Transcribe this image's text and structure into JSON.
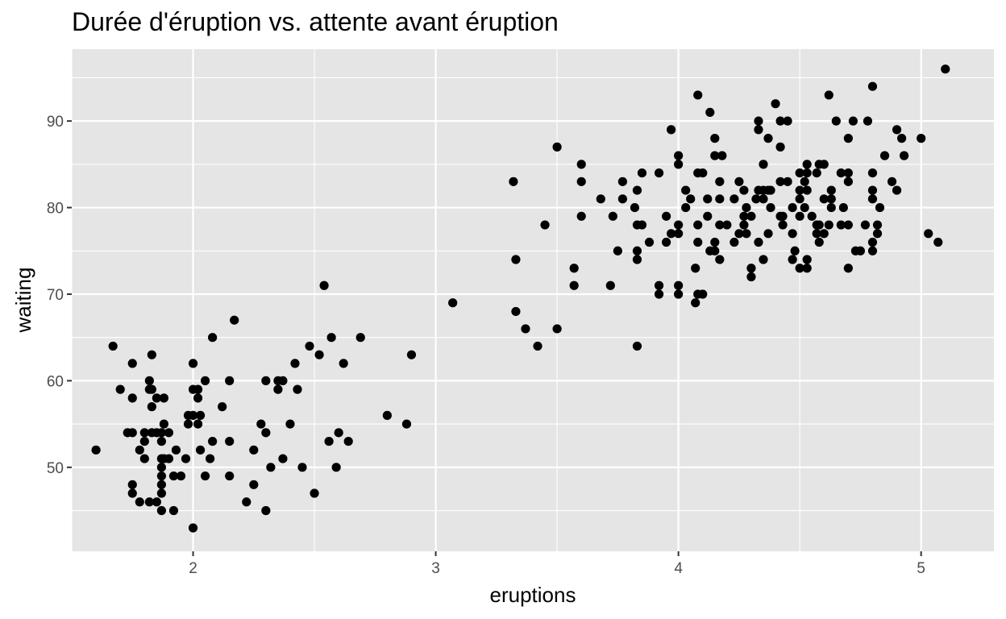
{
  "chart_data": {
    "type": "scatter",
    "title": "Durée d'éruption vs. attente avant éruption",
    "xlabel": "eruptions",
    "ylabel": "waiting",
    "xlim": [
      1.5,
      5.3
    ],
    "ylim": [
      40.3,
      98.3
    ],
    "x_ticks": [
      2,
      3,
      4,
      5
    ],
    "x_tick_labels": [
      "2",
      "3",
      "4",
      "5"
    ],
    "y_ticks": [
      50,
      60,
      70,
      80,
      90
    ],
    "y_tick_labels": [
      "50",
      "60",
      "70",
      "80",
      "90"
    ],
    "grid": true,
    "colors": {
      "panel": "#e5e5e5",
      "grid": "#ffffff",
      "point": "#000000",
      "tick": "#4d4d4d",
      "tick_mark": "#333333"
    },
    "points": [
      [
        1.6,
        52
      ],
      [
        1.67,
        64
      ],
      [
        1.7,
        59
      ],
      [
        1.73,
        54
      ],
      [
        1.75,
        54
      ],
      [
        1.75,
        48
      ],
      [
        1.75,
        47
      ],
      [
        1.75,
        62
      ],
      [
        1.75,
        58
      ],
      [
        1.78,
        52
      ],
      [
        1.78,
        46
      ],
      [
        1.8,
        54
      ],
      [
        1.8,
        51
      ],
      [
        1.8,
        53
      ],
      [
        1.82,
        60
      ],
      [
        1.82,
        59
      ],
      [
        1.82,
        46
      ],
      [
        1.83,
        54
      ],
      [
        1.83,
        59
      ],
      [
        1.83,
        57
      ],
      [
        1.83,
        63
      ],
      [
        1.85,
        54
      ],
      [
        1.85,
        46
      ],
      [
        1.85,
        58
      ],
      [
        1.87,
        54
      ],
      [
        1.87,
        53
      ],
      [
        1.87,
        51
      ],
      [
        1.87,
        50
      ],
      [
        1.87,
        49
      ],
      [
        1.87,
        48
      ],
      [
        1.87,
        47
      ],
      [
        1.87,
        45
      ],
      [
        1.88,
        58
      ],
      [
        1.88,
        51
      ],
      [
        1.88,
        55
      ],
      [
        1.9,
        54
      ],
      [
        1.9,
        51
      ],
      [
        1.92,
        49
      ],
      [
        1.92,
        45
      ],
      [
        1.93,
        52
      ],
      [
        1.95,
        49
      ],
      [
        1.97,
        51
      ],
      [
        1.98,
        56
      ],
      [
        1.98,
        55
      ],
      [
        2.0,
        59
      ],
      [
        2.0,
        62
      ],
      [
        2.0,
        43
      ],
      [
        2.0,
        56
      ],
      [
        2.02,
        58
      ],
      [
        2.02,
        59
      ],
      [
        2.02,
        55
      ],
      [
        2.03,
        56
      ],
      [
        2.03,
        52
      ],
      [
        2.05,
        60
      ],
      [
        2.05,
        49
      ],
      [
        2.07,
        51
      ],
      [
        2.08,
        53
      ],
      [
        2.08,
        65
      ],
      [
        2.12,
        57
      ],
      [
        2.15,
        60
      ],
      [
        2.15,
        49
      ],
      [
        2.15,
        53
      ],
      [
        2.17,
        67
      ],
      [
        2.22,
        46
      ],
      [
        2.25,
        52
      ],
      [
        2.25,
        48
      ],
      [
        2.28,
        55
      ],
      [
        2.3,
        60
      ],
      [
        2.3,
        54
      ],
      [
        2.3,
        45
      ],
      [
        2.32,
        50
      ],
      [
        2.35,
        59
      ],
      [
        2.35,
        60
      ],
      [
        2.37,
        51
      ],
      [
        2.37,
        60
      ],
      [
        2.4,
        55
      ],
      [
        2.42,
        62
      ],
      [
        2.43,
        59
      ],
      [
        2.45,
        50
      ],
      [
        2.48,
        64
      ],
      [
        2.5,
        47
      ],
      [
        2.52,
        63
      ],
      [
        2.54,
        71
      ],
      [
        2.56,
        53
      ],
      [
        2.57,
        65
      ],
      [
        2.59,
        50
      ],
      [
        2.6,
        54
      ],
      [
        2.62,
        62
      ],
      [
        2.64,
        53
      ],
      [
        2.69,
        65
      ],
      [
        2.8,
        56
      ],
      [
        2.88,
        55
      ],
      [
        2.9,
        63
      ],
      [
        3.07,
        69
      ],
      [
        3.32,
        83
      ],
      [
        3.33,
        74
      ],
      [
        3.33,
        68
      ],
      [
        3.37,
        66
      ],
      [
        3.42,
        64
      ],
      [
        3.45,
        78
      ],
      [
        3.5,
        87
      ],
      [
        3.5,
        66
      ],
      [
        3.57,
        73
      ],
      [
        3.57,
        71
      ],
      [
        3.6,
        85
      ],
      [
        3.6,
        83
      ],
      [
        3.6,
        79
      ],
      [
        3.68,
        81
      ],
      [
        3.72,
        71
      ],
      [
        3.73,
        79
      ],
      [
        3.75,
        75
      ],
      [
        3.77,
        83
      ],
      [
        3.77,
        81
      ],
      [
        3.82,
        80
      ],
      [
        3.83,
        82
      ],
      [
        3.83,
        78
      ],
      [
        3.83,
        75
      ],
      [
        3.83,
        74
      ],
      [
        3.83,
        64
      ],
      [
        3.85,
        84
      ],
      [
        3.85,
        78
      ],
      [
        3.88,
        76
      ],
      [
        3.92,
        84
      ],
      [
        3.92,
        71
      ],
      [
        3.92,
        70
      ],
      [
        3.95,
        79
      ],
      [
        3.95,
        76
      ],
      [
        3.97,
        89
      ],
      [
        3.97,
        77
      ],
      [
        4.0,
        86
      ],
      [
        4.0,
        85
      ],
      [
        4.0,
        78
      ],
      [
        4.0,
        77
      ],
      [
        4.0,
        71
      ],
      [
        4.0,
        70
      ],
      [
        4.03,
        82
      ],
      [
        4.03,
        80
      ],
      [
        4.05,
        81
      ],
      [
        4.07,
        73
      ],
      [
        4.07,
        69
      ],
      [
        4.08,
        93
      ],
      [
        4.08,
        84
      ],
      [
        4.08,
        78
      ],
      [
        4.08,
        76
      ],
      [
        4.08,
        70
      ],
      [
        4.1,
        84
      ],
      [
        4.1,
        70
      ],
      [
        4.12,
        81
      ],
      [
        4.12,
        79
      ],
      [
        4.13,
        91
      ],
      [
        4.13,
        75
      ],
      [
        4.15,
        88
      ],
      [
        4.15,
        86
      ],
      [
        4.15,
        76
      ],
      [
        4.15,
        75
      ],
      [
        4.17,
        83
      ],
      [
        4.17,
        81
      ],
      [
        4.17,
        78
      ],
      [
        4.17,
        74
      ],
      [
        4.18,
        86
      ],
      [
        4.2,
        78
      ],
      [
        4.23,
        81
      ],
      [
        4.23,
        76
      ],
      [
        4.25,
        83
      ],
      [
        4.25,
        77
      ],
      [
        4.27,
        82
      ],
      [
        4.27,
        79
      ],
      [
        4.27,
        78
      ],
      [
        4.28,
        77
      ],
      [
        4.28,
        80
      ],
      [
        4.3,
        79
      ],
      [
        4.3,
        73
      ],
      [
        4.3,
        72
      ],
      [
        4.32,
        81
      ],
      [
        4.33,
        90
      ],
      [
        4.33,
        89
      ],
      [
        4.33,
        82
      ],
      [
        4.33,
        76
      ],
      [
        4.35,
        85
      ],
      [
        4.35,
        82
      ],
      [
        4.35,
        81
      ],
      [
        4.35,
        74
      ],
      [
        4.37,
        88
      ],
      [
        4.37,
        82
      ],
      [
        4.37,
        77
      ],
      [
        4.38,
        82
      ],
      [
        4.38,
        80
      ],
      [
        4.4,
        92
      ],
      [
        4.42,
        90
      ],
      [
        4.42,
        87
      ],
      [
        4.42,
        83
      ],
      [
        4.42,
        79
      ],
      [
        4.43,
        79
      ],
      [
        4.43,
        78
      ],
      [
        4.45,
        90
      ],
      [
        4.45,
        83
      ],
      [
        4.47,
        80
      ],
      [
        4.47,
        77
      ],
      [
        4.47,
        74
      ],
      [
        4.48,
        75
      ],
      [
        4.5,
        84
      ],
      [
        4.5,
        82
      ],
      [
        4.5,
        81
      ],
      [
        4.5,
        79
      ],
      [
        4.5,
        73
      ],
      [
        4.52,
        83
      ],
      [
        4.52,
        80
      ],
      [
        4.53,
        85
      ],
      [
        4.53,
        84
      ],
      [
        4.53,
        82
      ],
      [
        4.53,
        74
      ],
      [
        4.53,
        73
      ],
      [
        4.55,
        79
      ],
      [
        4.57,
        84
      ],
      [
        4.57,
        78
      ],
      [
        4.57,
        77
      ],
      [
        4.58,
        85
      ],
      [
        4.58,
        78
      ],
      [
        4.58,
        76
      ],
      [
        4.6,
        85
      ],
      [
        4.6,
        81
      ],
      [
        4.6,
        77
      ],
      [
        4.62,
        93
      ],
      [
        4.62,
        78
      ],
      [
        4.63,
        82
      ],
      [
        4.63,
        81
      ],
      [
        4.63,
        80
      ],
      [
        4.65,
        90
      ],
      [
        4.67,
        84
      ],
      [
        4.67,
        78
      ],
      [
        4.68,
        80
      ],
      [
        4.7,
        88
      ],
      [
        4.7,
        84
      ],
      [
        4.7,
        83
      ],
      [
        4.7,
        78
      ],
      [
        4.7,
        73
      ],
      [
        4.72,
        90
      ],
      [
        4.73,
        75
      ],
      [
        4.75,
        75
      ],
      [
        4.77,
        78
      ],
      [
        4.78,
        90
      ],
      [
        4.8,
        94
      ],
      [
        4.8,
        84
      ],
      [
        4.8,
        82
      ],
      [
        4.8,
        81
      ],
      [
        4.8,
        76
      ],
      [
        4.8,
        75
      ],
      [
        4.82,
        78
      ],
      [
        4.82,
        77
      ],
      [
        4.83,
        80
      ],
      [
        4.85,
        86
      ],
      [
        4.88,
        83
      ],
      [
        4.9,
        89
      ],
      [
        4.9,
        82
      ],
      [
        4.92,
        88
      ],
      [
        4.93,
        86
      ],
      [
        5.0,
        88
      ],
      [
        5.03,
        77
      ],
      [
        5.07,
        76
      ],
      [
        5.1,
        96
      ]
    ]
  }
}
